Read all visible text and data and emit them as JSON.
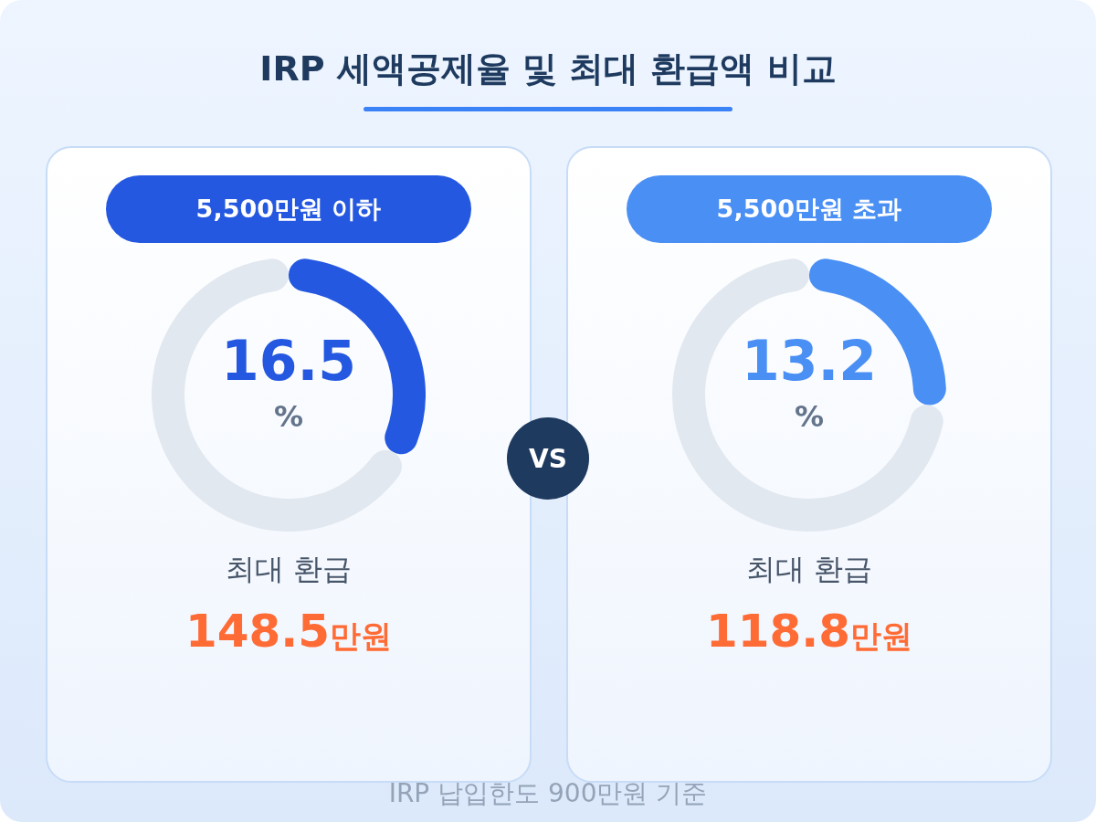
{
  "chart_data": [
    {
      "type": "other",
      "title": "IRP 세액공제율 및 최대 환급액 비교",
      "annotations": [
        "VS",
        "IRP 납입한도 900만원 기준"
      ]
    },
    {
      "type": "donut",
      "title": "5,500만원 이하",
      "categories": [
        null,
        null
      ],
      "values": [
        16.5,
        33.5
      ],
      "colors": [
        "#2458e0",
        "#e2e8f0"
      ],
      "value_labels": [
        "16.5",
        null
      ],
      "annotations": [
        "%",
        "최대 환급",
        "148.5만원"
      ]
    },
    {
      "type": "donut",
      "title": "5,500만원 초과",
      "categories": [
        null,
        null
      ],
      "values": [
        13.2,
        36.8
      ],
      "colors": [
        "#4a8ff4",
        "#e2e8f0"
      ],
      "value_labels": [
        "13.2",
        null
      ],
      "annotations": [
        "%",
        "최대 환급",
        "118.8만원"
      ]
    }
  ]
}
